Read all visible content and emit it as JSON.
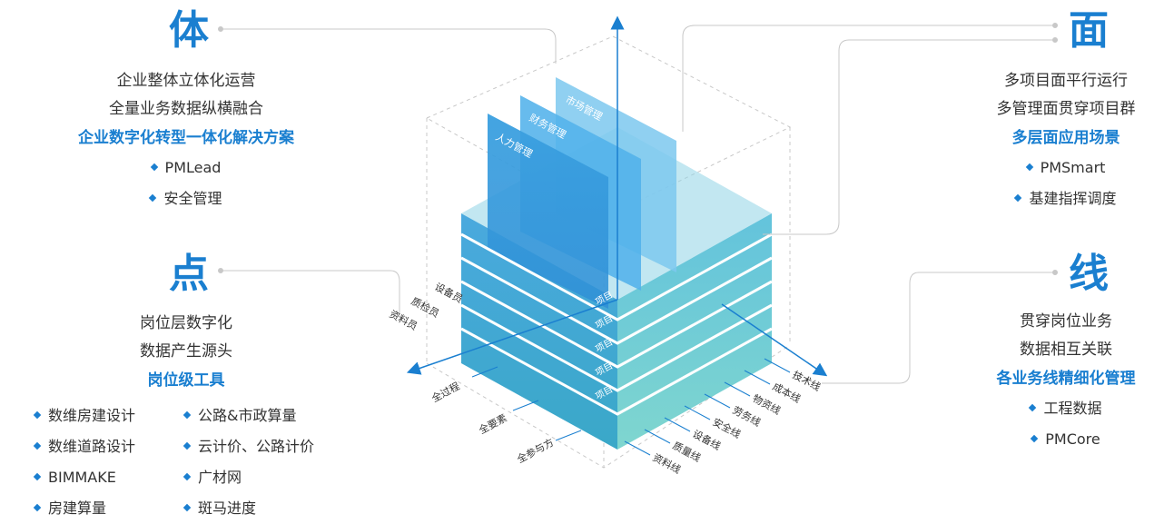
{
  "ti": {
    "title": "体",
    "lines": [
      "企业整体立体化运营",
      "全量业务数据纵横融合"
    ],
    "highlight": "企业数字化转型一体化解决方案",
    "bullets": [
      "PMLead",
      "安全管理"
    ]
  },
  "dian": {
    "title": "点",
    "lines": [
      "岗位层数字化",
      "数据产生源头"
    ],
    "highlight": "岗位级工具",
    "bullets": [
      "数维房建设计",
      "公路&市政算量",
      "数维道路设计",
      "云计价、公路计价",
      "BIMMAKE",
      "广材网",
      "房建算量",
      "斑马进度"
    ]
  },
  "mian": {
    "title": "面",
    "lines": [
      "多项目面平行运行",
      "多管理面贯穿项目群"
    ],
    "highlight": "多层面应用场景",
    "bullets": [
      "PMSmart",
      "基建指挥调度"
    ]
  },
  "xian": {
    "title": "线",
    "lines": [
      "贯穿岗位业务",
      "数据相互关联"
    ],
    "highlight": "各业务线精细化管理",
    "bullets": [
      "工程数据",
      "PMCore"
    ]
  },
  "cube": {
    "planes": [
      "人力管理",
      "财务管理",
      "市场管理"
    ],
    "layer_label": "项目",
    "left_axis": [
      "全过程",
      "全要素",
      "全参与方"
    ],
    "roles": [
      "设备员",
      "质检员",
      "资料员"
    ],
    "right_axis": [
      "技术线",
      "成本线",
      "物资线",
      "劳务线",
      "安全线",
      "设备线",
      "质量线",
      "资料线"
    ]
  },
  "colors": {
    "accent": "#1a7fd0",
    "text": "#333333",
    "cube_top": "#4fb3e0",
    "cube_bottom": "#5cc8c8"
  }
}
